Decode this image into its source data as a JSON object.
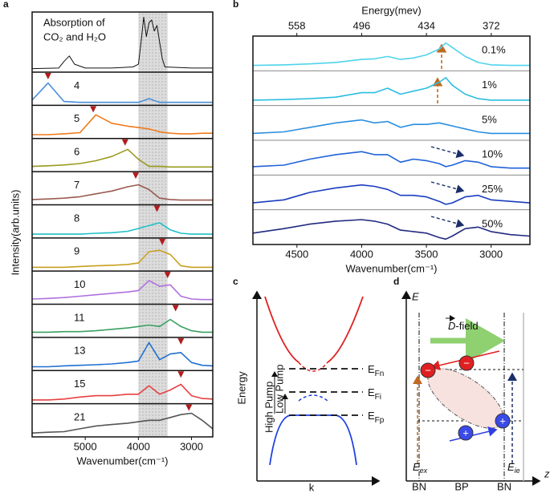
{
  "panel_labels": [
    "a",
    "b",
    "c",
    "d"
  ],
  "chart_data": [
    {
      "type": "line",
      "xlabel": "Wavenumber(cm⁻¹)",
      "ylabel": "Intensity(arb.units)",
      "xlim": [
        6000,
        2600
      ],
      "xticks": [
        5000,
        4000,
        3000
      ],
      "shaded_band": [
        4000,
        3450
      ],
      "marker_color": "#b01c1c",
      "reference": {
        "title": [
          "Absorption of",
          "CO₂ and H₂O"
        ],
        "color": "#111",
        "x": [
          6000,
          5500,
          5400,
          5300,
          5200,
          5000,
          4500,
          4100,
          4000,
          3950,
          3900,
          3850,
          3800,
          3750,
          3700,
          3650,
          3600,
          3550,
          3500,
          3000,
          2600
        ],
        "values": [
          0.02,
          0.03,
          0.15,
          0.25,
          0.1,
          0.03,
          0.03,
          0.05,
          0.1,
          0.5,
          0.95,
          0.6,
          0.85,
          0.9,
          0.7,
          0.8,
          0.5,
          0.2,
          0.05,
          0.03,
          0.03
        ]
      },
      "x": [
        6000,
        5700,
        5400,
        5100,
        4800,
        4500,
        4200,
        4000,
        3800,
        3600,
        3400,
        3200,
        3000,
        2800,
        2600
      ],
      "series": [
        {
          "name": "4",
          "color": "#4a8fd8",
          "peak": 5700,
          "values": [
            0.1,
            0.7,
            0.05,
            0.02,
            0.02,
            0.02,
            0.02,
            0.02,
            0.15,
            0.02,
            0.02,
            0.02,
            0.02,
            0.02,
            0.02
          ]
        },
        {
          "name": "5",
          "color": "#f07a1a",
          "peak": 4850,
          "values": [
            0.05,
            0.05,
            0.08,
            0.12,
            0.75,
            0.45,
            0.35,
            0.3,
            0.25,
            0.15,
            0.1,
            0.08,
            0.08,
            0.1,
            0.1
          ]
        },
        {
          "name": "6",
          "color": "#9a9a20",
          "peak": 4250,
          "values": [
            0.1,
            0.12,
            0.15,
            0.2,
            0.3,
            0.45,
            0.7,
            0.35,
            0.1,
            0.1,
            0.08,
            0.08,
            0.08,
            0.08,
            0.08
          ]
        },
        {
          "name": "7",
          "color": "#9a5a50",
          "peak": 4050,
          "values": [
            0.1,
            0.12,
            0.15,
            0.2,
            0.3,
            0.4,
            0.55,
            0.62,
            0.45,
            0.15,
            0.1,
            0.08,
            0.08,
            0.08,
            0.08
          ]
        },
        {
          "name": "8",
          "color": "#20c0c8",
          "peak": 3650,
          "values": [
            0.05,
            0.05,
            0.05,
            0.05,
            0.08,
            0.1,
            0.15,
            0.25,
            0.35,
            0.45,
            0.2,
            0.08,
            0.05,
            0.05,
            0.05
          ]
        },
        {
          "name": "9",
          "color": "#c8a020",
          "peak": 3550,
          "values": [
            0.05,
            0.05,
            0.05,
            0.08,
            0.1,
            0.12,
            0.15,
            0.2,
            0.6,
            0.65,
            0.5,
            0.1,
            0.05,
            0.05,
            0.05
          ]
        },
        {
          "name": "10",
          "color": "#b070e0",
          "peak": 3450,
          "values": [
            0.1,
            0.12,
            0.15,
            0.2,
            0.25,
            0.3,
            0.35,
            0.4,
            0.75,
            0.55,
            0.6,
            0.2,
            0.1,
            0.08,
            0.08
          ]
        },
        {
          "name": "11",
          "color": "#3aa060",
          "peak": 3300,
          "values": [
            0.1,
            0.1,
            0.12,
            0.12,
            0.15,
            0.2,
            0.25,
            0.3,
            0.35,
            0.3,
            0.55,
            0.3,
            0.15,
            0.1,
            0.1
          ]
        },
        {
          "name": "13",
          "color": "#2070d0",
          "peak": 3200,
          "values": [
            0.05,
            0.05,
            0.08,
            0.1,
            0.12,
            0.15,
            0.2,
            0.25,
            0.9,
            0.3,
            0.5,
            0.55,
            0.2,
            0.1,
            0.08
          ]
        },
        {
          "name": "15",
          "color": "#e84040",
          "peak": 3200,
          "values": [
            0.05,
            0.05,
            0.08,
            0.15,
            0.2,
            0.2,
            0.25,
            0.25,
            0.55,
            0.25,
            0.4,
            0.6,
            0.2,
            0.1,
            0.08
          ]
        },
        {
          "name": "21",
          "color": "#555555",
          "peak": 3050,
          "values": [
            0.05,
            0.08,
            0.1,
            0.2,
            0.3,
            0.35,
            0.4,
            0.45,
            0.5,
            0.5,
            0.6,
            0.7,
            0.75,
            0.5,
            0.2
          ]
        }
      ]
    },
    {
      "type": "line",
      "xlabel": "Wavenumber(cm⁻¹)",
      "x2label": "Energy(mev)",
      "xlim": [
        4840,
        2700
      ],
      "xticks": [
        4500,
        4000,
        3500,
        3000
      ],
      "x2lim": [
        600,
        335
      ],
      "x2ticks": [
        558,
        496,
        434,
        372
      ],
      "x": [
        4840,
        4600,
        4400,
        4200,
        4000,
        3900,
        3800,
        3700,
        3600,
        3500,
        3400,
        3350,
        3300,
        3200,
        3100,
        3000,
        2850,
        2700
      ],
      "series": [
        {
          "name": "0.1%",
          "color": "#4fd4ea",
          "values": [
            0.1,
            0.12,
            0.15,
            0.2,
            0.3,
            0.32,
            0.4,
            0.3,
            0.35,
            0.45,
            0.65,
            0.85,
            0.7,
            0.4,
            0.2,
            0.12,
            0.1,
            0.1
          ]
        },
        {
          "name": "1%",
          "color": "#2cbee0",
          "values": [
            0.1,
            0.12,
            0.15,
            0.2,
            0.35,
            0.35,
            0.5,
            0.3,
            0.4,
            0.5,
            0.7,
            0.85,
            0.6,
            0.3,
            0.15,
            0.1,
            0.1,
            0.1
          ]
        },
        {
          "name": "5%",
          "color": "#2a8ee0",
          "values": [
            0.15,
            0.2,
            0.35,
            0.5,
            0.6,
            0.5,
            0.55,
            0.35,
            0.45,
            0.45,
            0.5,
            0.45,
            0.4,
            0.3,
            0.2,
            0.15,
            0.15,
            0.15
          ]
        },
        {
          "name": "10%",
          "color": "#2062d8",
          "values": [
            0.2,
            0.25,
            0.45,
            0.6,
            0.7,
            0.6,
            0.6,
            0.35,
            0.45,
            0.4,
            0.3,
            0.2,
            0.25,
            0.4,
            0.35,
            0.2,
            0.15,
            0.15
          ]
        },
        {
          "name": "25%",
          "color": "#1a3cc0",
          "values": [
            0.15,
            0.25,
            0.5,
            0.65,
            0.75,
            0.7,
            0.6,
            0.4,
            0.4,
            0.35,
            0.2,
            0.1,
            0.15,
            0.35,
            0.4,
            0.25,
            0.2,
            0.15
          ]
        },
        {
          "name": "50%",
          "color": "#222a80",
          "values": [
            0.3,
            0.45,
            0.6,
            0.7,
            0.75,
            0.7,
            0.6,
            0.4,
            0.35,
            0.3,
            0.15,
            0.1,
            0.2,
            0.45,
            0.5,
            0.35,
            0.25,
            0.2
          ]
        }
      ]
    }
  ],
  "diagram_c": {
    "ylabel": "Energy",
    "xlabel": "k",
    "levels": [
      {
        "main": "E",
        "sub": "Fn"
      },
      {
        "main": "E",
        "sub": "Fi"
      },
      {
        "main": "E",
        "sub": "Fp"
      }
    ],
    "high_pump": "High Pump",
    "low_pump": "Low Pump"
  },
  "diagram_d": {
    "ylabel": "E",
    "xlabel": "z",
    "field": {
      "vec": "D",
      "rest": "-field"
    },
    "regions": [
      "BN",
      "BP",
      "BN"
    ],
    "electron": "−",
    "hole": "+",
    "e_ex": {
      "main": "E",
      "sub": "ex"
    },
    "e_ie": {
      "main": "E",
      "sub": "ie"
    }
  }
}
